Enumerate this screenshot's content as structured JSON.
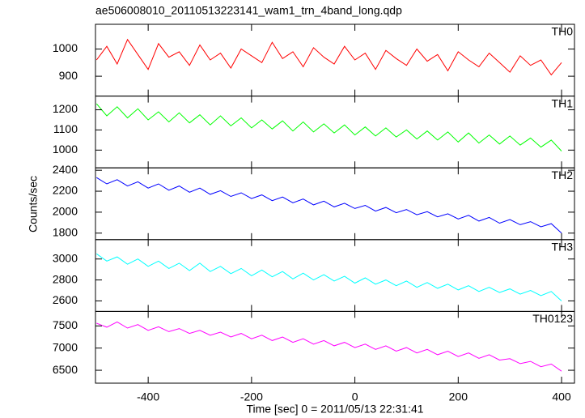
{
  "chart_data": {
    "type": "line",
    "title": "ae506008010_20110513223141_wam1_trn_4band_long.qdp",
    "x_label": "Time [sec] 0 = 2011/05/13 22:31:41",
    "y_label": "Counts/sec",
    "xlim": [
      -502,
      425
    ],
    "xticks": [
      -400,
      -200,
      0,
      200,
      400
    ],
    "x": [
      -500,
      -480,
      -460,
      -440,
      -420,
      -400,
      -380,
      -360,
      -340,
      -320,
      -300,
      -280,
      -260,
      -240,
      -220,
      -200,
      -180,
      -160,
      -140,
      -120,
      -100,
      -80,
      -60,
      -40,
      -20,
      0,
      20,
      40,
      60,
      80,
      100,
      120,
      140,
      160,
      180,
      200,
      220,
      240,
      260,
      280,
      300,
      320,
      340,
      360,
      380,
      400
    ],
    "series": [
      {
        "name": "TH0",
        "color": "#ff0000",
        "ylim": [
          827,
          1091
        ],
        "yticks": [
          900,
          1000
        ],
        "values": [
          960,
          1010,
          945,
          1035,
          980,
          925,
          1020,
          970,
          990,
          940,
          1015,
          960,
          985,
          930,
          1000,
          975,
          950,
          1025,
          965,
          990,
          935,
          1005,
          970,
          945,
          1010,
          960,
          985,
          925,
          995,
          965,
          940,
          1000,
          955,
          980,
          920,
          990,
          960,
          935,
          985,
          950,
          915,
          975,
          940,
          960,
          905,
          950
        ]
      },
      {
        "name": "TH1",
        "color": "#00ff00",
        "ylim": [
          912,
          1268
        ],
        "yticks": [
          1000,
          1100,
          1200
        ],
        "values": [
          1230,
          1170,
          1215,
          1160,
          1205,
          1150,
          1190,
          1140,
          1185,
          1135,
          1175,
          1125,
          1170,
          1120,
          1160,
          1110,
          1150,
          1105,
          1145,
          1095,
          1140,
          1090,
          1130,
          1085,
          1125,
          1075,
          1115,
          1070,
          1110,
          1065,
          1100,
          1055,
          1095,
          1050,
          1090,
          1040,
          1085,
          1035,
          1075,
          1030,
          1070,
          1025,
          1060,
          1015,
          1050,
          995
        ]
      },
      {
        "name": "TH2",
        "color": "#0000ff",
        "ylim": [
          1738,
          2423
        ],
        "yticks": [
          1800,
          2000,
          2200,
          2400
        ],
        "values": [
          2330,
          2270,
          2310,
          2250,
          2290,
          2230,
          2270,
          2210,
          2250,
          2190,
          2230,
          2170,
          2205,
          2150,
          2185,
          2130,
          2165,
          2110,
          2145,
          2090,
          2125,
          2070,
          2105,
          2050,
          2085,
          2035,
          2065,
          2010,
          2045,
          1995,
          2025,
          1975,
          2005,
          1955,
          1985,
          1935,
          1970,
          1915,
          1950,
          1895,
          1930,
          1880,
          1910,
          1860,
          1890,
          1800
        ]
      },
      {
        "name": "TH3",
        "color": "#00ffff",
        "ylim": [
          2500,
          3185
        ],
        "yticks": [
          2600,
          2800,
          3000
        ],
        "values": [
          3050,
          2980,
          3020,
          2950,
          3000,
          2930,
          2980,
          2910,
          2960,
          2890,
          2960,
          2880,
          2930,
          2860,
          2910,
          2840,
          2895,
          2830,
          2880,
          2810,
          2865,
          2800,
          2850,
          2790,
          2835,
          2770,
          2820,
          2760,
          2800,
          2745,
          2790,
          2730,
          2775,
          2720,
          2760,
          2705,
          2745,
          2690,
          2730,
          2680,
          2715,
          2665,
          2700,
          2650,
          2690,
          2600
        ]
      },
      {
        "name": "TH0123",
        "color": "#ff00ff",
        "ylim": [
          6209,
          7827
        ],
        "yticks": [
          6500,
          7000,
          7500
        ],
        "values": [
          7560,
          7470,
          7590,
          7450,
          7530,
          7400,
          7480,
          7370,
          7440,
          7330,
          7400,
          7290,
          7360,
          7250,
          7330,
          7210,
          7290,
          7170,
          7250,
          7130,
          7210,
          7090,
          7170,
          7050,
          7130,
          7010,
          7090,
          6970,
          7050,
          6930,
          7010,
          6890,
          6970,
          6850,
          6930,
          6810,
          6890,
          6770,
          6850,
          6730,
          6760,
          6650,
          6700,
          6580,
          6640,
          6480
        ]
      }
    ]
  }
}
